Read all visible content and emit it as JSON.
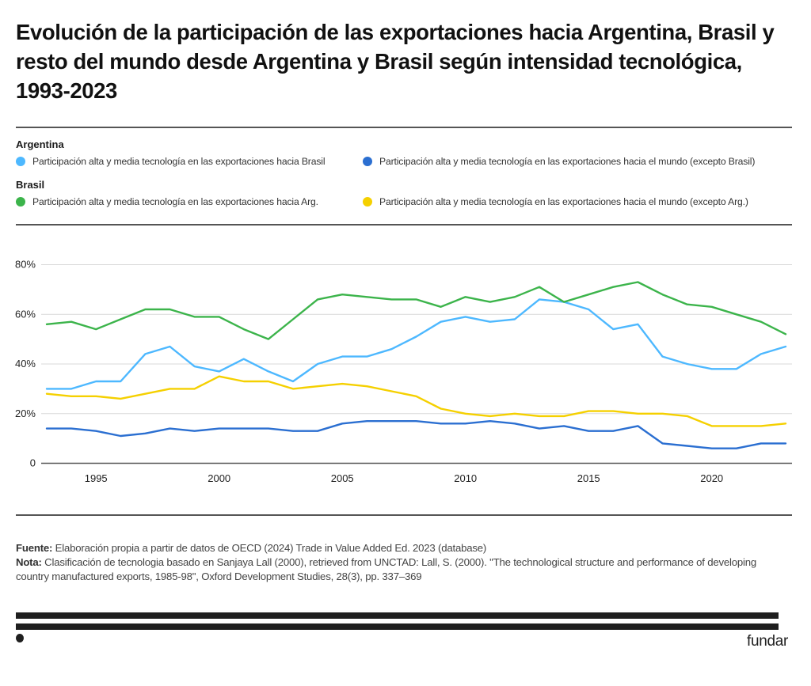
{
  "title": "Evolución de la participación de las exportaciones hacia Argentina, Brasil y resto del mundo desde Argentina y Brasil según intensidad tecnológica, 1993-2023",
  "legend": {
    "groups": [
      {
        "label": "Argentina",
        "items": [
          {
            "label": "Participación alta y media tecnología en las exportaciones hacia Brasil",
            "color": "#4db8ff"
          },
          {
            "label": "Participación alta y media tecnología en las exportaciones hacia el mundo (excepto Brasil)",
            "color": "#2b6fd1"
          }
        ]
      },
      {
        "label": "Brasil",
        "items": [
          {
            "label": "Participación alta y media tecnología en las exportaciones hacia Arg.",
            "color": "#3cb44b"
          },
          {
            "label": "Participación alta y media tecnología en las exportaciones hacia el mundo (excepto Arg.)",
            "color": "#f5d000"
          }
        ]
      }
    ]
  },
  "chart_data": {
    "type": "line",
    "title": "Evolución de la participación de las exportaciones hacia Argentina, Brasil y resto del mundo desde Argentina y Brasil según intensidad tecnológica, 1993-2023",
    "xlabel": "",
    "ylabel": "",
    "x": [
      1993,
      1994,
      1995,
      1996,
      1997,
      1998,
      1999,
      2000,
      2001,
      2002,
      2003,
      2004,
      2005,
      2006,
      2007,
      2008,
      2009,
      2010,
      2011,
      2012,
      2013,
      2014,
      2015,
      2016,
      2017,
      2018,
      2019,
      2020,
      2021,
      2022,
      2023
    ],
    "xlim": [
      1993,
      2023
    ],
    "ylim": [
      0,
      80
    ],
    "x_ticks": [
      1995,
      2000,
      2005,
      2010,
      2015,
      2020
    ],
    "x_tick_labels": [
      "1995",
      "2000",
      "2005",
      "2010",
      "2015",
      "2020"
    ],
    "y_ticks": [
      0,
      20,
      40,
      60,
      80
    ],
    "y_tick_labels": [
      "0",
      "20%",
      "40%",
      "60%",
      "80%"
    ],
    "grid": true,
    "legend_position": "top",
    "series": [
      {
        "name": "Argentina: Participación alta y media tecnología en las exportaciones hacia Brasil",
        "color": "#4db8ff",
        "values": [
          30,
          30,
          33,
          33,
          44,
          47,
          39,
          37,
          42,
          37,
          33,
          40,
          43,
          43,
          46,
          51,
          57,
          59,
          57,
          58,
          66,
          65,
          62,
          54,
          56,
          43,
          40,
          38,
          38,
          44,
          47
        ]
      },
      {
        "name": "Argentina: Participación alta y media tecnología en las exportaciones hacia el mundo (excepto Brasil)",
        "color": "#2b6fd1",
        "values": [
          14,
          14,
          13,
          11,
          12,
          14,
          13,
          14,
          14,
          14,
          13,
          13,
          16,
          17,
          17,
          17,
          16,
          16,
          17,
          16,
          14,
          15,
          13,
          13,
          15,
          8,
          7,
          6,
          6,
          8,
          8
        ]
      },
      {
        "name": "Brasil: Participación alta y media tecnología en las exportaciones hacia Arg.",
        "color": "#3cb44b",
        "values": [
          56,
          57,
          54,
          58,
          62,
          62,
          59,
          59,
          54,
          50,
          58,
          66,
          68,
          67,
          66,
          66,
          63,
          67,
          65,
          67,
          71,
          65,
          68,
          71,
          73,
          68,
          64,
          63,
          60,
          57,
          52
        ]
      },
      {
        "name": "Brasil: Participación alta y media tecnología en las exportaciones hacia el mundo (excepto Arg.)",
        "color": "#f5d000",
        "values": [
          28,
          27,
          27,
          26,
          28,
          30,
          30,
          35,
          33,
          33,
          30,
          31,
          32,
          31,
          29,
          27,
          22,
          20,
          19,
          20,
          19,
          19,
          21,
          21,
          20,
          20,
          19,
          15,
          15,
          15,
          16
        ]
      }
    ]
  },
  "footnotes": {
    "source_label": "Fuente:",
    "source_text": " Elaboración propia a partir de datos de OECD (2024) Trade in Value Added Ed. 2023 (database)",
    "note_label": "Nota:",
    "note_text": " Clasificación de tecnologia basado en Sanjaya Lall (2000), retrieved from UNCTAD: Lall, S. (2000). \"The technological structure and performance of developing country manufactured exports, 1985-98\", Oxford Development Studies, 28(3), pp. 337–369"
  },
  "brand": {
    "logo_text": "fundar"
  }
}
